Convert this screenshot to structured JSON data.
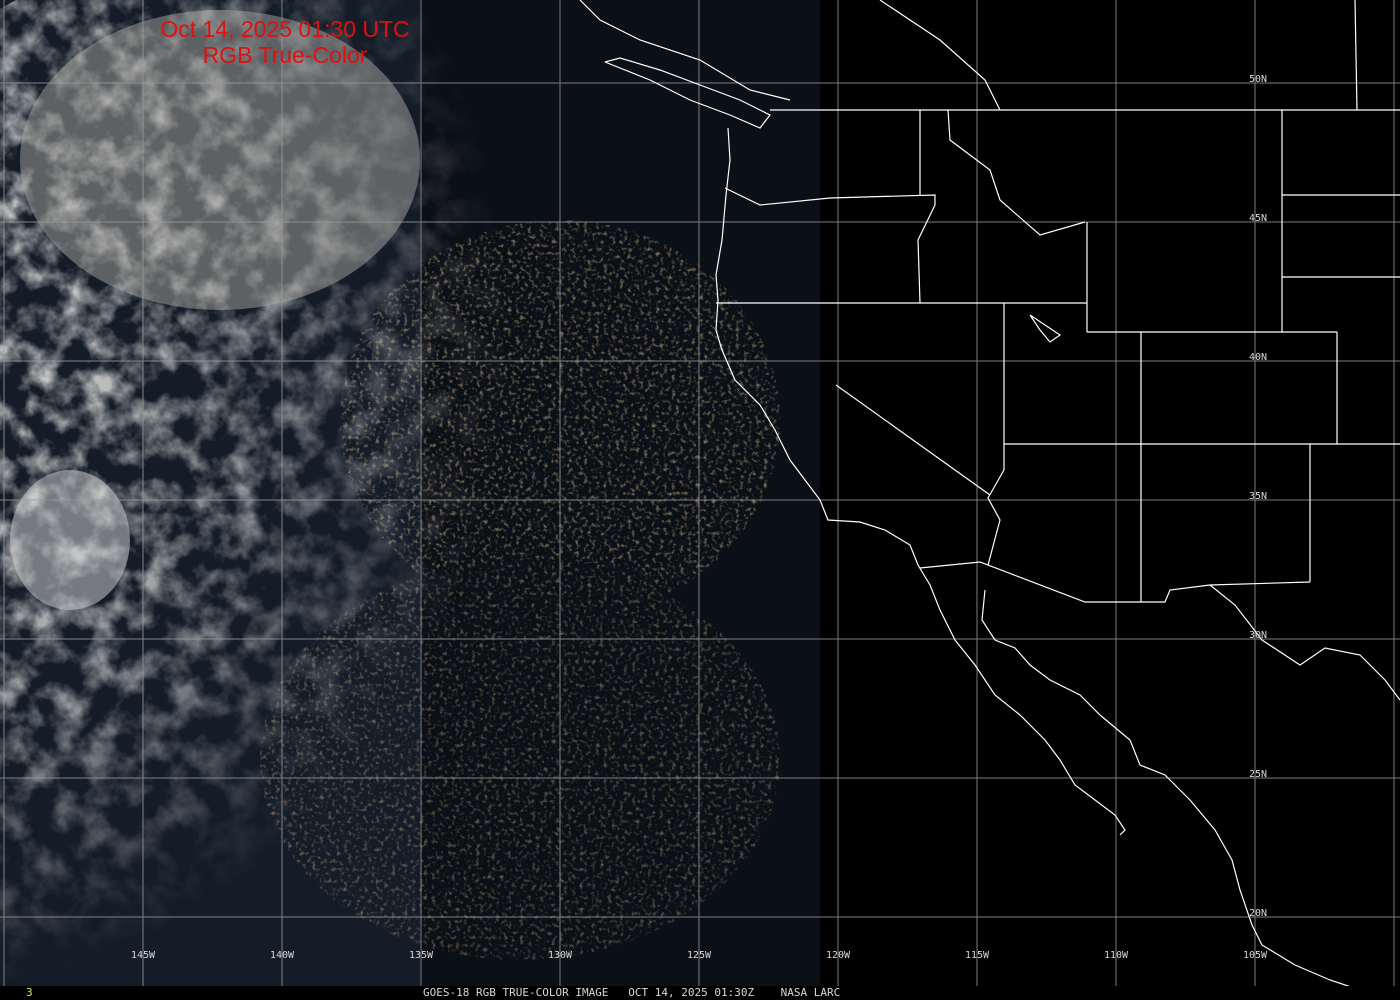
{
  "title": {
    "line1": "Oct 14, 2025 01:30 UTC",
    "line2": "RGB True-Color"
  },
  "footer": {
    "frame": "3",
    "caption": "GOES-18 RGB TRUE-COLOR IMAGE   OCT 14, 2025 01:30Z    NASA LARC"
  },
  "longitude_labels": [
    "145W",
    "140W",
    "135W",
    "130W",
    "125W",
    "120W",
    "115W",
    "110W",
    "105W"
  ],
  "latitude_labels": [
    "50N",
    "45N",
    "40N",
    "35N",
    "30N",
    "25N",
    "20N"
  ],
  "colors": {
    "title": "#e01010",
    "grid": "#9a9a9a",
    "borders": "#ffffff",
    "frame_number": "#e8e060"
  }
}
